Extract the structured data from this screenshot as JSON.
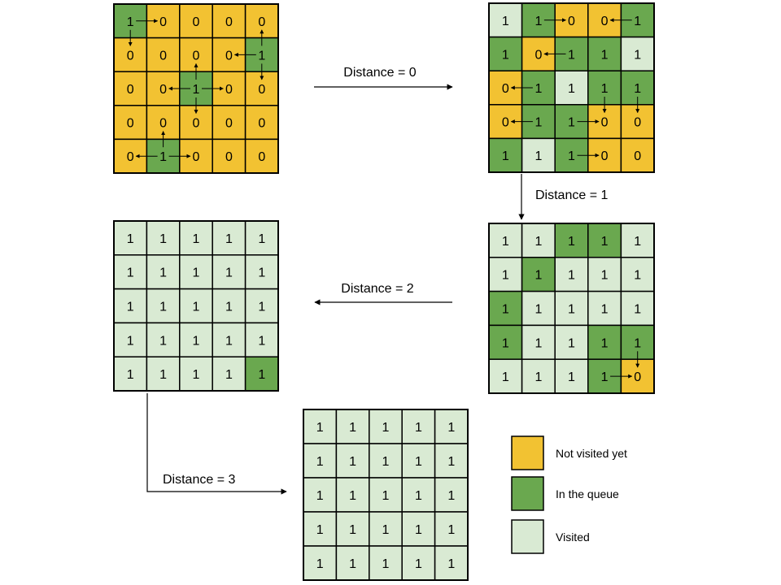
{
  "colors": {
    "not_visited": "#f2c232",
    "in_queue": "#6aa84f",
    "visited": "#d9ead3",
    "border": "#000000"
  },
  "grids": [
    {
      "id": "grid-initial",
      "cells": [
        [
          "1",
          "0",
          "0",
          "0",
          "0"
        ],
        [
          "0",
          "0",
          "0",
          "0",
          "1"
        ],
        [
          "0",
          "0",
          "1",
          "0",
          "0"
        ],
        [
          "0",
          "0",
          "0",
          "0",
          "0"
        ],
        [
          "0",
          "1",
          "0",
          "0",
          "0"
        ]
      ],
      "states": [
        [
          "q",
          "n",
          "n",
          "n",
          "n"
        ],
        [
          "n",
          "n",
          "n",
          "n",
          "q"
        ],
        [
          "n",
          "n",
          "q",
          "n",
          "n"
        ],
        [
          "n",
          "n",
          "n",
          "n",
          "n"
        ],
        [
          "n",
          "q",
          "n",
          "n",
          "n"
        ]
      ],
      "arrows": [
        [
          0,
          0,
          0,
          1
        ],
        [
          0,
          0,
          1,
          0
        ],
        [
          1,
          4,
          1,
          3
        ],
        [
          1,
          4,
          0,
          4
        ],
        [
          1,
          4,
          2,
          4
        ],
        [
          2,
          2,
          2,
          1
        ],
        [
          2,
          2,
          2,
          3
        ],
        [
          2,
          2,
          1,
          2
        ],
        [
          2,
          2,
          3,
          2
        ],
        [
          4,
          1,
          4,
          0
        ],
        [
          4,
          1,
          4,
          2
        ],
        [
          4,
          1,
          3,
          1
        ]
      ]
    },
    {
      "id": "grid-distance-0",
      "cells": [
        [
          "1",
          "1",
          "0",
          "0",
          "1"
        ],
        [
          "1",
          "0",
          "1",
          "1",
          "1"
        ],
        [
          "0",
          "1",
          "1",
          "1",
          "1"
        ],
        [
          "0",
          "1",
          "1",
          "0",
          "0"
        ],
        [
          "1",
          "1",
          "1",
          "0",
          "0"
        ]
      ],
      "states": [
        [
          "v",
          "q",
          "n",
          "n",
          "q"
        ],
        [
          "q",
          "n",
          "q",
          "q",
          "v"
        ],
        [
          "n",
          "q",
          "v",
          "q",
          "q"
        ],
        [
          "n",
          "q",
          "q",
          "n",
          "n"
        ],
        [
          "q",
          "v",
          "q",
          "n",
          "n"
        ]
      ],
      "arrows": [
        [
          0,
          1,
          0,
          2
        ],
        [
          0,
          4,
          0,
          3
        ],
        [
          1,
          2,
          1,
          1
        ],
        [
          2,
          1,
          2,
          0
        ],
        [
          2,
          3,
          3,
          3
        ],
        [
          2,
          4,
          3,
          4
        ],
        [
          3,
          1,
          3,
          0
        ],
        [
          3,
          2,
          3,
          3
        ],
        [
          4,
          2,
          4,
          3
        ]
      ]
    },
    {
      "id": "grid-distance-1",
      "cells": [
        [
          "1",
          "1",
          "1",
          "1",
          "1"
        ],
        [
          "1",
          "1",
          "1",
          "1",
          "1"
        ],
        [
          "1",
          "1",
          "1",
          "1",
          "1"
        ],
        [
          "1",
          "1",
          "1",
          "1",
          "1"
        ],
        [
          "1",
          "1",
          "1",
          "1",
          "0"
        ]
      ],
      "states": [
        [
          "v",
          "v",
          "q",
          "q",
          "v"
        ],
        [
          "v",
          "q",
          "v",
          "v",
          "v"
        ],
        [
          "q",
          "v",
          "v",
          "v",
          "v"
        ],
        [
          "q",
          "v",
          "v",
          "q",
          "q"
        ],
        [
          "v",
          "v",
          "v",
          "q",
          "n"
        ]
      ],
      "arrows": [
        [
          3,
          4,
          4,
          4
        ],
        [
          4,
          3,
          4,
          4
        ]
      ]
    },
    {
      "id": "grid-distance-2",
      "cells": [
        [
          "1",
          "1",
          "1",
          "1",
          "1"
        ],
        [
          "1",
          "1",
          "1",
          "1",
          "1"
        ],
        [
          "1",
          "1",
          "1",
          "1",
          "1"
        ],
        [
          "1",
          "1",
          "1",
          "1",
          "1"
        ],
        [
          "1",
          "1",
          "1",
          "1",
          "1"
        ]
      ],
      "states": [
        [
          "v",
          "v",
          "v",
          "v",
          "v"
        ],
        [
          "v",
          "v",
          "v",
          "v",
          "v"
        ],
        [
          "v",
          "v",
          "v",
          "v",
          "v"
        ],
        [
          "v",
          "v",
          "v",
          "v",
          "v"
        ],
        [
          "v",
          "v",
          "v",
          "v",
          "q"
        ]
      ],
      "arrows": []
    },
    {
      "id": "grid-distance-3",
      "cells": [
        [
          "1",
          "1",
          "1",
          "1",
          "1"
        ],
        [
          "1",
          "1",
          "1",
          "1",
          "1"
        ],
        [
          "1",
          "1",
          "1",
          "1",
          "1"
        ],
        [
          "1",
          "1",
          "1",
          "1",
          "1"
        ],
        [
          "1",
          "1",
          "1",
          "1",
          "1"
        ]
      ],
      "states": [
        [
          "v",
          "v",
          "v",
          "v",
          "v"
        ],
        [
          "v",
          "v",
          "v",
          "v",
          "v"
        ],
        [
          "v",
          "v",
          "v",
          "v",
          "v"
        ],
        [
          "v",
          "v",
          "v",
          "v",
          "v"
        ],
        [
          "v",
          "v",
          "v",
          "v",
          "v"
        ]
      ],
      "arrows": []
    }
  ],
  "transitions": {
    "distance_0": "Distance = 0",
    "distance_1": "Distance = 1",
    "distance_2": "Distance = 2",
    "distance_3": "Distance = 3"
  },
  "legend": {
    "not_visited": "Not visited yet",
    "in_queue": "In the queue",
    "visited": "Visited"
  }
}
